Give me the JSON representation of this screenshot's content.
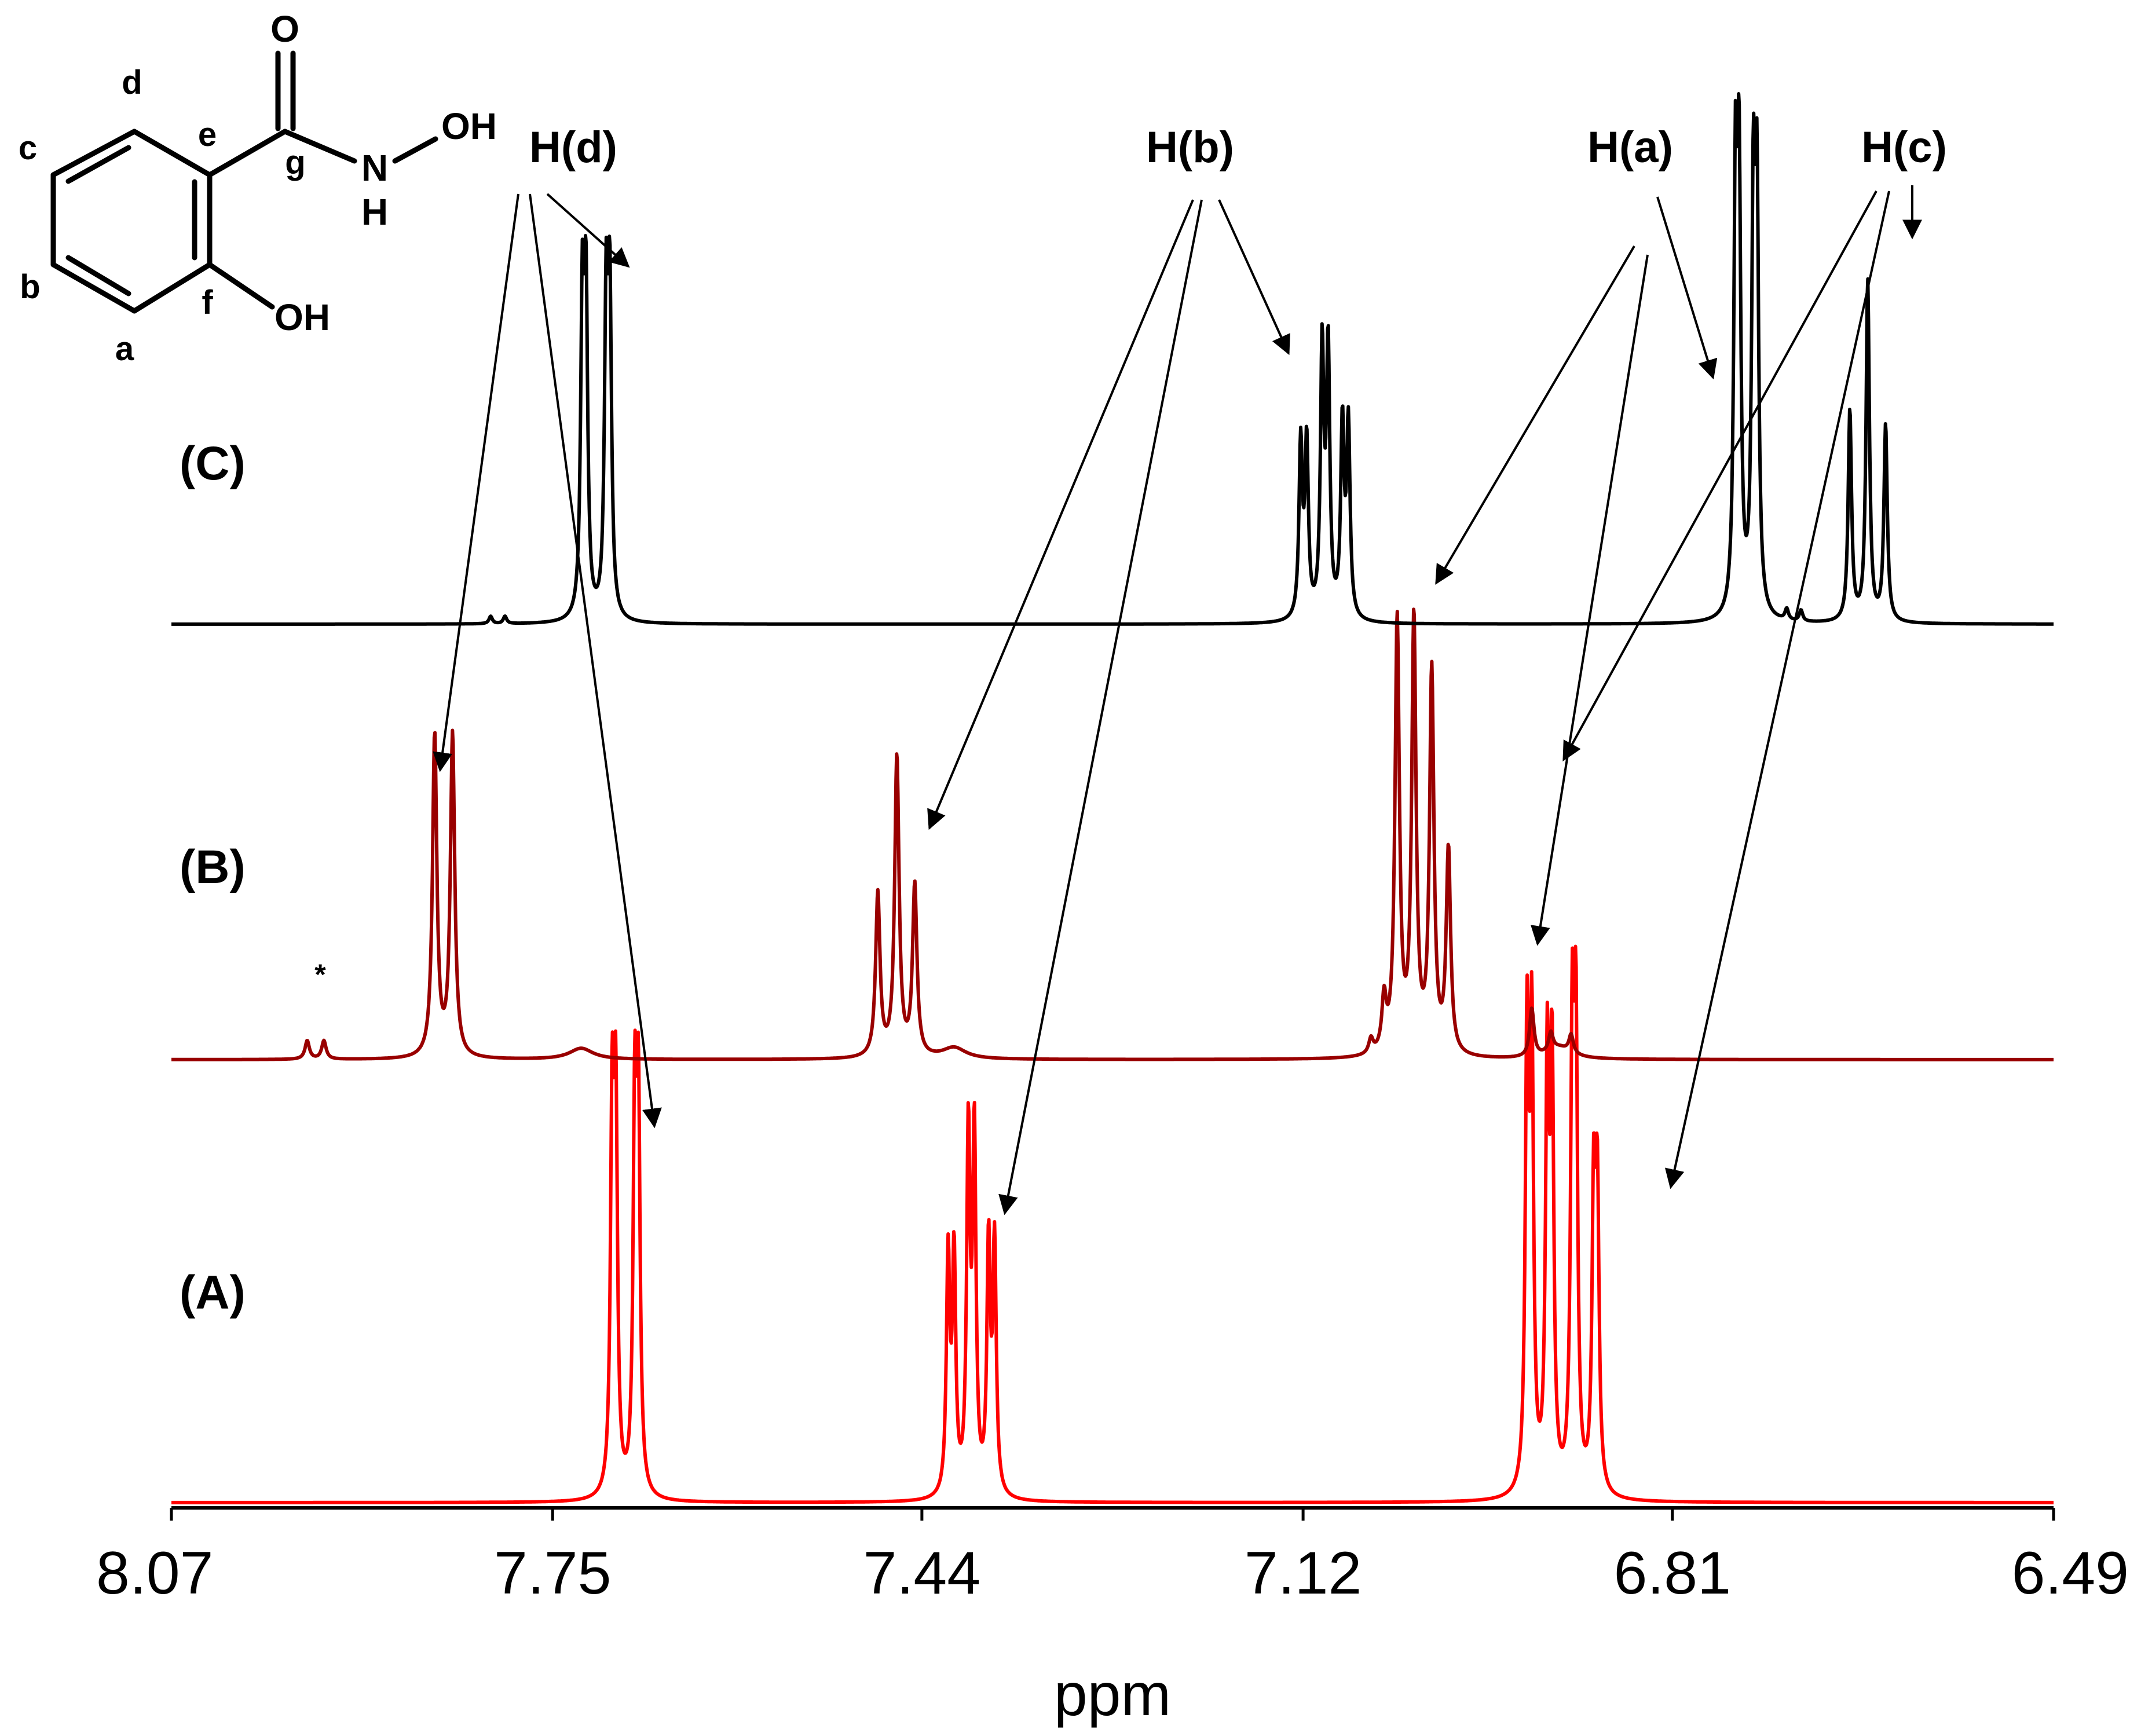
{
  "chart_data": {
    "type": "line",
    "title": "",
    "xlabel": "ppm",
    "ylabel": "",
    "xlim": [
      8.07,
      6.49
    ],
    "x_reversed": true,
    "grid": false,
    "x_ticks": [
      "8.07",
      "7.75",
      "7.44",
      "7.12",
      "6.81",
      "6.49"
    ],
    "x_tick_values": [
      8.07,
      7.75,
      7.44,
      7.12,
      6.81,
      6.49
    ],
    "trace_colors": {
      "A": "#ff0000",
      "B": "#990000",
      "C": "#000000"
    },
    "series": [
      {
        "name": "(A)",
        "key": "A",
        "peaks": [
          {
            "ppm": 7.7,
            "h": 1.0
          },
          {
            "ppm": 7.697,
            "h": 1.0
          },
          {
            "ppm": 7.681,
            "h": 1.0
          },
          {
            "ppm": 7.678,
            "h": 1.0
          },
          {
            "ppm": 7.418,
            "h": 0.64
          },
          {
            "ppm": 7.413,
            "h": 0.64
          },
          {
            "ppm": 7.401,
            "h": 0.96
          },
          {
            "ppm": 7.396,
            "h": 0.96
          },
          {
            "ppm": 7.384,
            "h": 0.67
          },
          {
            "ppm": 7.379,
            "h": 0.67
          },
          {
            "ppm": 6.932,
            "h": 1.21
          },
          {
            "ppm": 6.928,
            "h": 1.21
          },
          {
            "ppm": 6.915,
            "h": 1.13
          },
          {
            "ppm": 6.911,
            "h": 1.13
          },
          {
            "ppm": 6.894,
            "h": 1.17
          },
          {
            "ppm": 6.891,
            "h": 1.17
          },
          {
            "ppm": 6.876,
            "h": 0.78
          },
          {
            "ppm": 6.873,
            "h": 0.78
          }
        ]
      },
      {
        "name": "(B)",
        "key": "B",
        "peaks": [
          {
            "ppm": 7.956,
            "h": 0.05
          },
          {
            "ppm": 7.942,
            "h": 0.05
          },
          {
            "ppm": 7.849,
            "h": 0.87
          },
          {
            "ppm": 7.834,
            "h": 0.87
          },
          {
            "ppm": 7.477,
            "h": 0.44
          },
          {
            "ppm": 7.461,
            "h": 0.81
          },
          {
            "ppm": 7.446,
            "h": 0.46
          },
          {
            "ppm": 7.726,
            "h": 0.03,
            "broad": true
          },
          {
            "ppm": 7.413,
            "h": 0.03,
            "broad": true
          },
          {
            "ppm": 7.063,
            "h": 0.04
          },
          {
            "ppm": 7.052,
            "h": 0.14
          },
          {
            "ppm": 7.041,
            "h": 1.17
          },
          {
            "ppm": 7.027,
            "h": 1.17
          },
          {
            "ppm": 7.012,
            "h": 1.03
          },
          {
            "ppm": 6.998,
            "h": 0.55
          },
          {
            "ppm": 6.928,
            "h": 0.13
          },
          {
            "ppm": 6.912,
            "h": 0.05
          },
          {
            "ppm": 6.895,
            "h": 0.05
          },
          {
            "ppm": 6.905,
            "h": 0.03,
            "broad": true
          }
        ]
      },
      {
        "name": "(C)",
        "key": "C",
        "peaks": [
          {
            "ppm": 7.725,
            "h": 0.83
          },
          {
            "ppm": 7.722,
            "h": 0.83
          },
          {
            "ppm": 7.705,
            "h": 0.83
          },
          {
            "ppm": 7.702,
            "h": 0.83
          },
          {
            "ppm": 7.802,
            "h": 0.02
          },
          {
            "ppm": 7.79,
            "h": 0.02
          },
          {
            "ppm": 7.122,
            "h": 0.47
          },
          {
            "ppm": 7.117,
            "h": 0.47
          },
          {
            "ppm": 7.104,
            "h": 0.72
          },
          {
            "ppm": 7.099,
            "h": 0.72
          },
          {
            "ppm": 7.087,
            "h": 0.52
          },
          {
            "ppm": 7.082,
            "h": 0.52
          },
          {
            "ppm": 6.757,
            "h": 1.12
          },
          {
            "ppm": 6.754,
            "h": 1.12
          },
          {
            "ppm": 6.742,
            "h": 1.07
          },
          {
            "ppm": 6.739,
            "h": 1.07
          },
          {
            "ppm": 6.714,
            "h": 0.03
          },
          {
            "ppm": 6.702,
            "h": 0.03
          },
          {
            "ppm": 6.661,
            "h": 0.57
          },
          {
            "ppm": 6.646,
            "h": 0.92
          },
          {
            "ppm": 6.631,
            "h": 0.53
          }
        ]
      }
    ],
    "annotations": {
      "peak_groups": [
        "H(d)",
        "H(b)",
        "H(a)",
        "H(c)"
      ],
      "impurity_marker": "*"
    }
  },
  "molecule": {
    "atoms": {
      "o_carbonyl": "O",
      "oh_top": "OH",
      "n": "N",
      "nh_h": "H",
      "oh_ring": "OH"
    },
    "position_letters": [
      "a",
      "b",
      "c",
      "d",
      "e",
      "f",
      "g"
    ]
  },
  "trace_labels": [
    "(A)",
    "(B)",
    "(C)"
  ]
}
